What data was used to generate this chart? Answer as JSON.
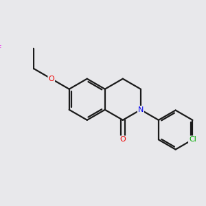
{
  "background_color": "#e8e8eb",
  "bond_color": "#1a1a1a",
  "bond_width": 1.6,
  "atom_colors": {
    "F": "#ee00ee",
    "O": "#ee0000",
    "N": "#0000ee",
    "Cl": "#00aa00",
    "C": "#1a1a1a"
  },
  "figsize": [
    3.0,
    3.0
  ],
  "dpi": 100
}
